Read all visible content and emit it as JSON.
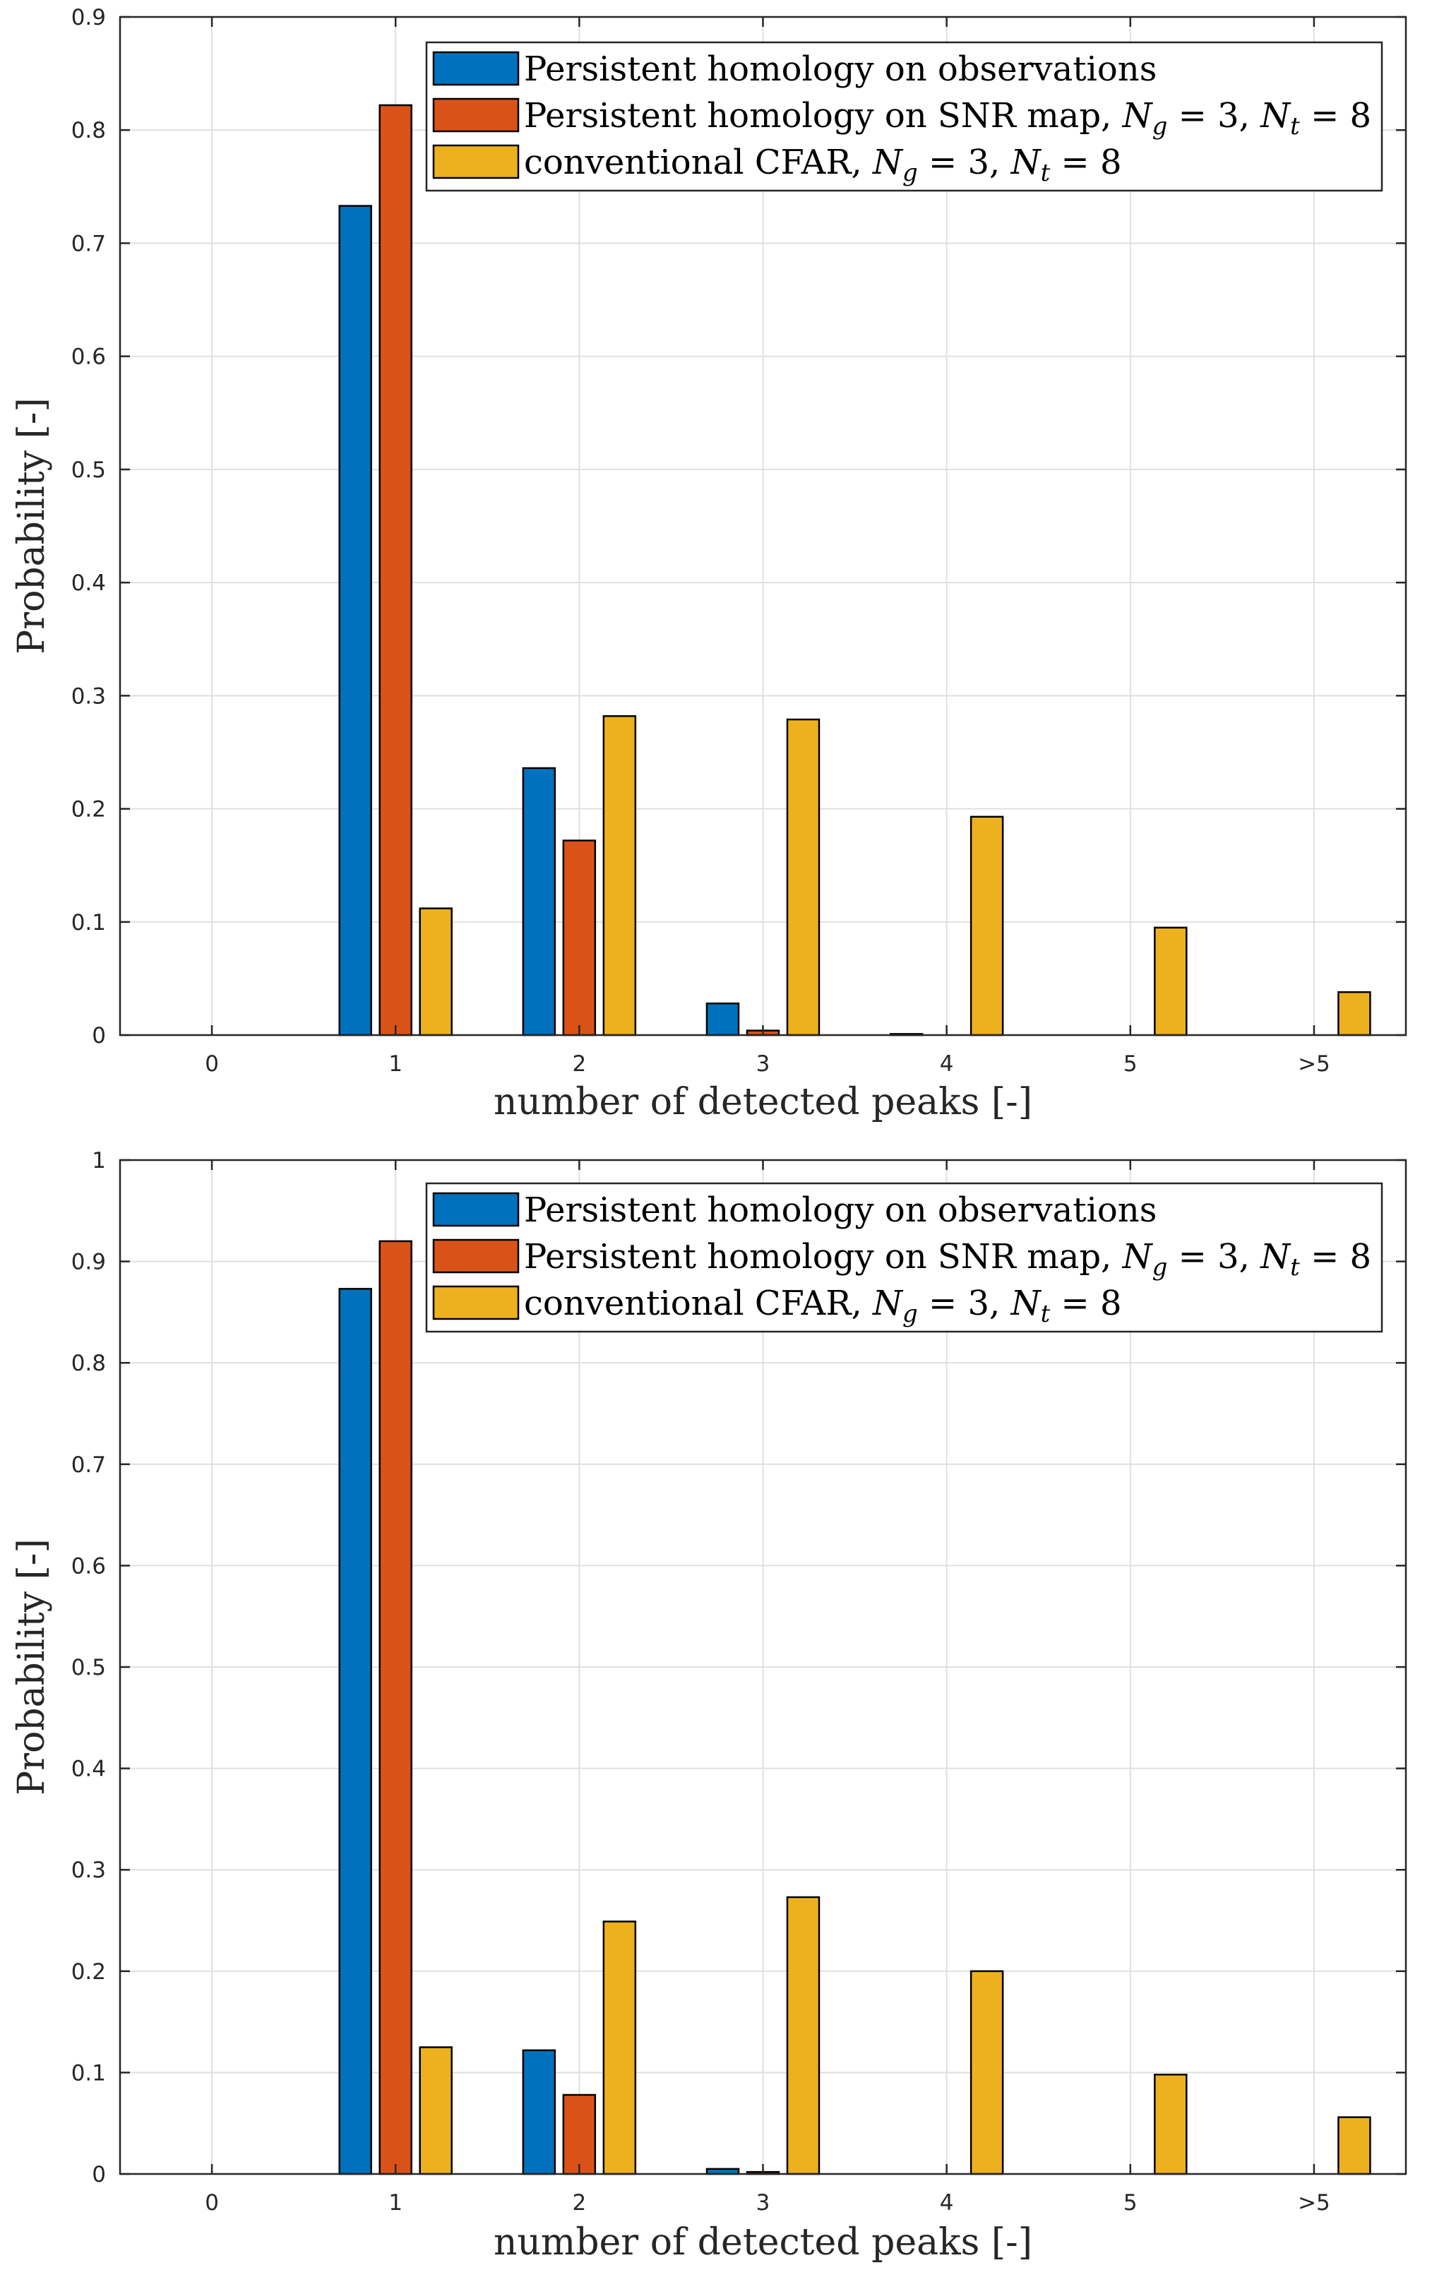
{
  "colors": {
    "series_1": "#0072BD",
    "series_2": "#D95319",
    "series_3": "#EDB120"
  },
  "chart_data": [
    {
      "type": "bar",
      "xlabel": "number of detected peaks [-]",
      "ylabel": "Probability [-]",
      "categories": [
        "0",
        "1",
        "2",
        "3",
        "4",
        "5",
        ">5"
      ],
      "ylim": [
        0,
        0.9
      ],
      "yticks": [
        "0",
        "0.1",
        "0.2",
        "0.3",
        "0.4",
        "0.5",
        "0.6",
        "0.7",
        "0.8",
        "0.9"
      ],
      "grid": true,
      "legend_position": "top-right",
      "series": [
        {
          "name": "Persistent homology on observations",
          "values": [
            0,
            0.733,
            0.236,
            0.028,
            0.001,
            0,
            0
          ]
        },
        {
          "name": "Persistent homology on SNR map, N_g = 3, N_t = 8",
          "values": [
            0,
            0.822,
            0.172,
            0.004,
            0,
            0,
            0
          ]
        },
        {
          "name": "conventional CFAR, N_g = 3, N_t = 8",
          "values": [
            0,
            0.112,
            0.282,
            0.279,
            0.193,
            0.095,
            0.038
          ]
        }
      ]
    },
    {
      "type": "bar",
      "xlabel": "number of detected peaks [-]",
      "ylabel": "Probability [-]",
      "categories": [
        "0",
        "1",
        "2",
        "3",
        "4",
        "5",
        ">5"
      ],
      "ylim": [
        0,
        1
      ],
      "yticks": [
        "0",
        "0.1",
        "0.2",
        "0.3",
        "0.4",
        "0.5",
        "0.6",
        "0.7",
        "0.8",
        "0.9",
        "1"
      ],
      "grid": true,
      "legend_position": "top-right",
      "series": [
        {
          "name": "Persistent homology on observations",
          "values": [
            0,
            0.873,
            0.122,
            0.005,
            0,
            0,
            0
          ]
        },
        {
          "name": "Persistent homology on SNR map, N_g = 3, N_t = 8",
          "values": [
            0,
            0.92,
            0.078,
            0.002,
            0,
            0,
            0
          ]
        },
        {
          "name": "conventional CFAR, N_g = 3, N_t = 8",
          "values": [
            0,
            0.125,
            0.249,
            0.273,
            0.2,
            0.098,
            0.056
          ]
        }
      ]
    }
  ]
}
